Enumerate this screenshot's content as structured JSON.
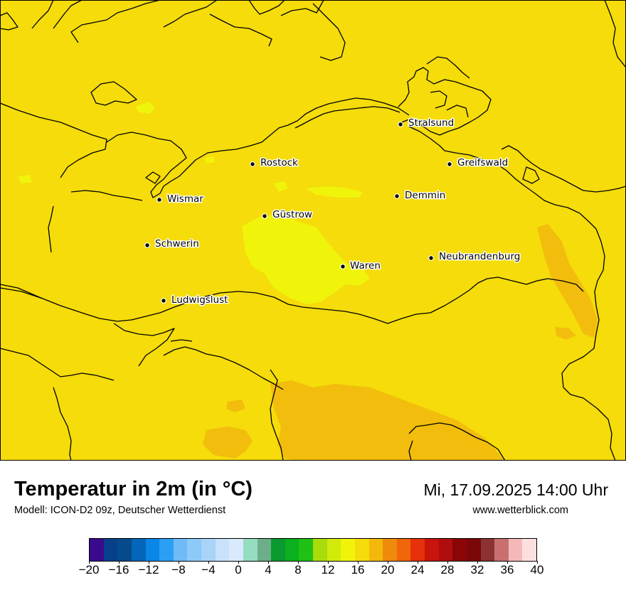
{
  "title": "Temperatur in 2m (in °C)",
  "model": "Modell: ICON-D2 09z, Deutscher Wetterdienst",
  "datetime": "Mi, 17.09.2025 14:00 Uhr",
  "website": "www.wetterblick.com",
  "map": {
    "base_color": "#f5dc0a",
    "cities": [
      {
        "name": "Stralsund"
      },
      {
        "name": "Rostock"
      },
      {
        "name": "Greifswald"
      },
      {
        "name": "Wismar"
      },
      {
        "name": "Demmin"
      },
      {
        "name": "Güstrow"
      },
      {
        "name": "Schwerin"
      },
      {
        "name": "Neubrandenburg"
      },
      {
        "name": "Waren"
      },
      {
        "name": "Ludwigslust"
      }
    ]
  },
  "colorbar": {
    "min": -20,
    "max": 40,
    "colors": [
      "#3a0a8c",
      "#06408a",
      "#044a8c",
      "#0366b8",
      "#0a86e6",
      "#2aa0f5",
      "#70baf8",
      "#8ccaf8",
      "#a8d4f8",
      "#c8e2fb",
      "#d8eafc",
      "#96dcc0",
      "#6cae8a",
      "#0a9a30",
      "#0ab01e",
      "#20c014",
      "#a8dc0a",
      "#d2ea0a",
      "#f0f40a",
      "#f5dc0a",
      "#f2b80a",
      "#ef8a0a",
      "#f0660a",
      "#e6320a",
      "#c8140a",
      "#b00e0e",
      "#8a0606",
      "#7a0808",
      "#8c3232",
      "#c87070",
      "#f5b8b8",
      "#fce0e0"
    ],
    "tick_labels": [
      "−20",
      "−16",
      "−12",
      "−8",
      "−4",
      "0",
      "4",
      "8",
      "12",
      "16",
      "20",
      "24",
      "28",
      "32",
      "36",
      "40"
    ]
  }
}
